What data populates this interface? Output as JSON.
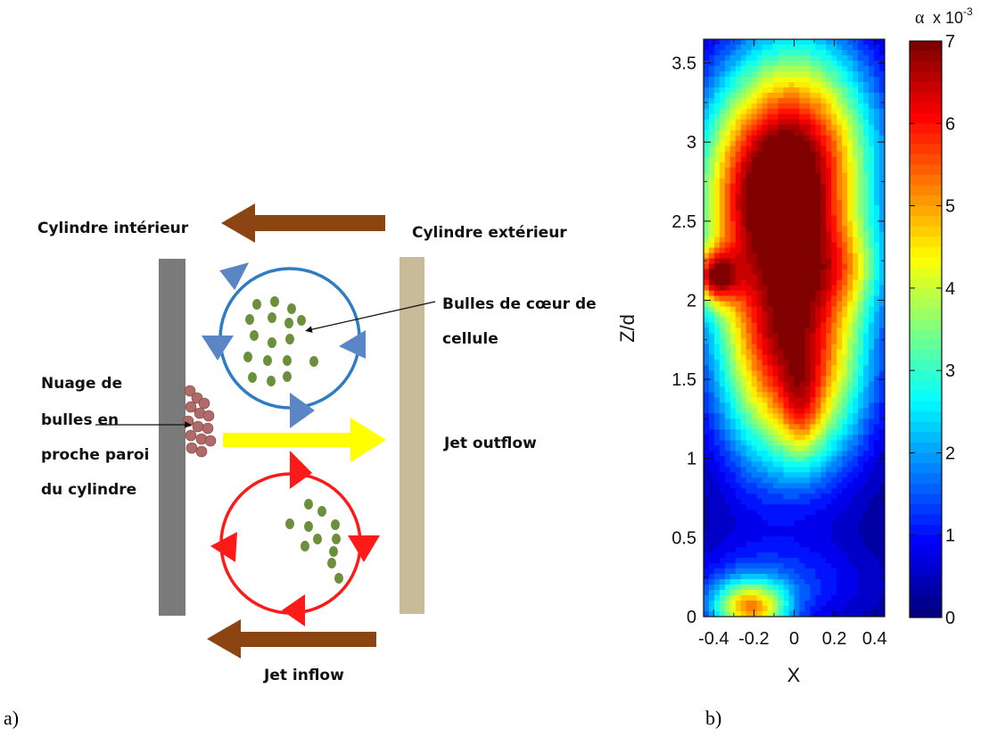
{
  "panel_a": {
    "panel_label": "a)",
    "labels": {
      "inner_cylinder": "Cylindre intérieur",
      "outer_cylinder": "Cylindre extérieur",
      "core_bubbles_line1": "Bulles de cœur de",
      "core_bubbles_line2": "cellule",
      "cloud_line1": "Nuage de",
      "cloud_line2": "bulles en",
      "cloud_line3": "proche paroi",
      "cloud_line4": "du cylindre",
      "jet_outflow": "Jet outflow",
      "jet_inflow": "Jet inflow"
    },
    "colors": {
      "inner_wall": "#7a7a7a",
      "outer_wall": "#c8bb9a",
      "brown_arrow": "#8b4513",
      "yellow_arrow": "#ffff00",
      "upper_cell": "#2e7cc4",
      "upper_arrowheads": "#5b86c5",
      "lower_cell": "#ff1a1a",
      "bubble": "#6b8f3a",
      "cloud_bubble": "#b06a6a"
    }
  },
  "panel_b": {
    "panel_label": "b)",
    "chart_data": {
      "type": "heatmap",
      "xlabel": "X",
      "ylabel": "Z/d",
      "xlim": [
        -0.45,
        0.45
      ],
      "ylim": [
        0,
        3.65
      ],
      "x_ticks": [
        -0.4,
        -0.2,
        0,
        0.2,
        0.4
      ],
      "x_tick_labels": [
        "-0.4",
        "-0.2",
        "0",
        "0.2",
        "0.4"
      ],
      "y_ticks": [
        0,
        0.5,
        1,
        1.5,
        2,
        2.5,
        3,
        3.5
      ],
      "y_tick_labels": [
        "0",
        "0.5",
        "1",
        "1.5",
        "2",
        "2.5",
        "3",
        "3.5"
      ],
      "colorbar": {
        "title": "α",
        "multiplier": "x 10",
        "exponent": "-3",
        "min": 0,
        "max": 7,
        "ticks": [
          0,
          1,
          2,
          3,
          4,
          5,
          6,
          7
        ],
        "tick_labels": [
          "0",
          "1",
          "2",
          "3",
          "4",
          "5",
          "6",
          "7"
        ]
      },
      "blobs": [
        {
          "x": 0.03,
          "z": 2.85,
          "sx": 0.26,
          "sz": 0.55,
          "amp": 6.6
        },
        {
          "x": -0.02,
          "z": 2.6,
          "sx": 0.12,
          "sz": 0.12,
          "amp": 0.5
        },
        {
          "x": 0.04,
          "z": 1.62,
          "sx": 0.23,
          "sz": 0.48,
          "amp": 5.5
        },
        {
          "x": 0.04,
          "z": 1.28,
          "sx": 0.07,
          "sz": 0.2,
          "amp": 1.3
        },
        {
          "x": -0.22,
          "z": 1.9,
          "sx": 0.18,
          "sz": 0.7,
          "amp": 1.6
        },
        {
          "x": -0.4,
          "z": 2.15,
          "sx": 0.08,
          "sz": 0.12,
          "amp": 3.8
        },
        {
          "x": -0.3,
          "z": 2.65,
          "sx": 0.2,
          "sz": 0.5,
          "amp": 2.2
        },
        {
          "x": 0.25,
          "z": 2.2,
          "sx": 0.15,
          "sz": 0.2,
          "amp": 1.5
        },
        {
          "x": -0.22,
          "z": 0.05,
          "sx": 0.13,
          "sz": 0.12,
          "amp": 4.3
        },
        {
          "x": -0.1,
          "z": 0.2,
          "sx": 0.35,
          "sz": 0.2,
          "amp": 1.2
        }
      ]
    }
  }
}
